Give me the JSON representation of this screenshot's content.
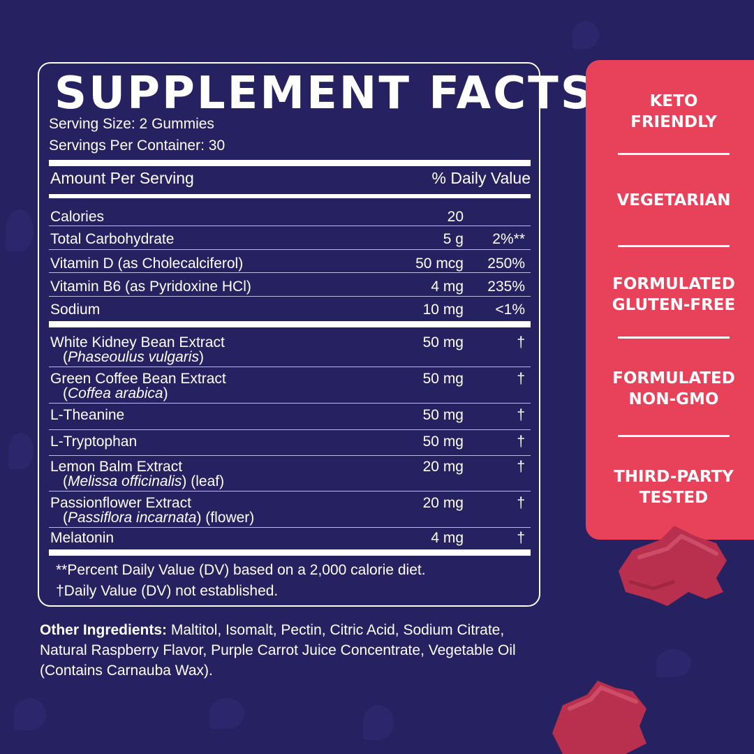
{
  "panel": {
    "title": "SUPPLEMENT FACTS",
    "serving_size": "Serving Size: 2 Gummies",
    "servings_per_container": "Servings Per Container: 30",
    "amount_header": "Amount Per Serving",
    "dv_header": "% Daily Value",
    "nutrients": [
      {
        "name": "Calories",
        "amount": "20",
        "dv": ""
      },
      {
        "name": "Total Carbohydrate",
        "amount": "5 g",
        "dv": "2%**"
      },
      {
        "name": "Vitamin D (as Cholecalciferol)",
        "amount": "50 mcg",
        "dv": "250%"
      },
      {
        "name": "Vitamin B6 (as Pyridoxine HCl)",
        "amount": "4 mg",
        "dv": "235%"
      },
      {
        "name": "Sodium",
        "amount": "10 mg",
        "dv": "<1%"
      }
    ],
    "ingredients": [
      {
        "name": "White Kidney Bean Extract",
        "sci": "Phaseoulus vulgaris",
        "sci_suffix": "",
        "amount": "50 mg",
        "dv": "†"
      },
      {
        "name": "Green Coffee Bean Extract",
        "sci": "Coffea arabica",
        "sci_suffix": "",
        "amount": "50 mg",
        "dv": "†"
      },
      {
        "name": "L-Theanine",
        "amount": "50 mg",
        "dv": "†"
      },
      {
        "name": "L-Tryptophan",
        "amount": "50 mg",
        "dv": "†"
      },
      {
        "name": "Lemon Balm Extract",
        "sci": "Melissa officinalis",
        "sci_suffix": " (leaf)",
        "amount": "20 mg",
        "dv": "†"
      },
      {
        "name": "Passionflower Extract",
        "sci": "Passiflora incarnata",
        "sci_suffix": " (flower)",
        "amount": "20 mg",
        "dv": "†"
      },
      {
        "name": "Melatonin",
        "amount": "4 mg",
        "dv": "†"
      }
    ],
    "footnote_1": "**Percent Daily Value (DV) based on a 2,000 calorie diet.",
    "footnote_2": "†Daily Value (DV) not established."
  },
  "other_ingredients": {
    "label": "Other Ingredients:",
    "text": " Maltitol, Isomalt, Pectin, Citric Acid, Sodium Citrate, Natural Raspberry Flavor, Purple Carrot Juice Concentrate, Vegetable Oil (Contains Carnauba Wax)."
  },
  "claims": [
    {
      "line1": "KETO",
      "line2": "FRIENDLY"
    },
    {
      "line1": "VEGETARIAN",
      "line2": ""
    },
    {
      "line1": "FORMULATED",
      "line2": "GLUTEN-FREE"
    },
    {
      "line1": "FORMULATED",
      "line2": "NON-GMO"
    },
    {
      "line1": "THIRD-PARTY",
      "line2": "TESTED"
    }
  ],
  "colors": {
    "background": "#262160",
    "claims_panel": "#e8425a",
    "gummy": "#b8304e",
    "text": "#ffffff"
  }
}
